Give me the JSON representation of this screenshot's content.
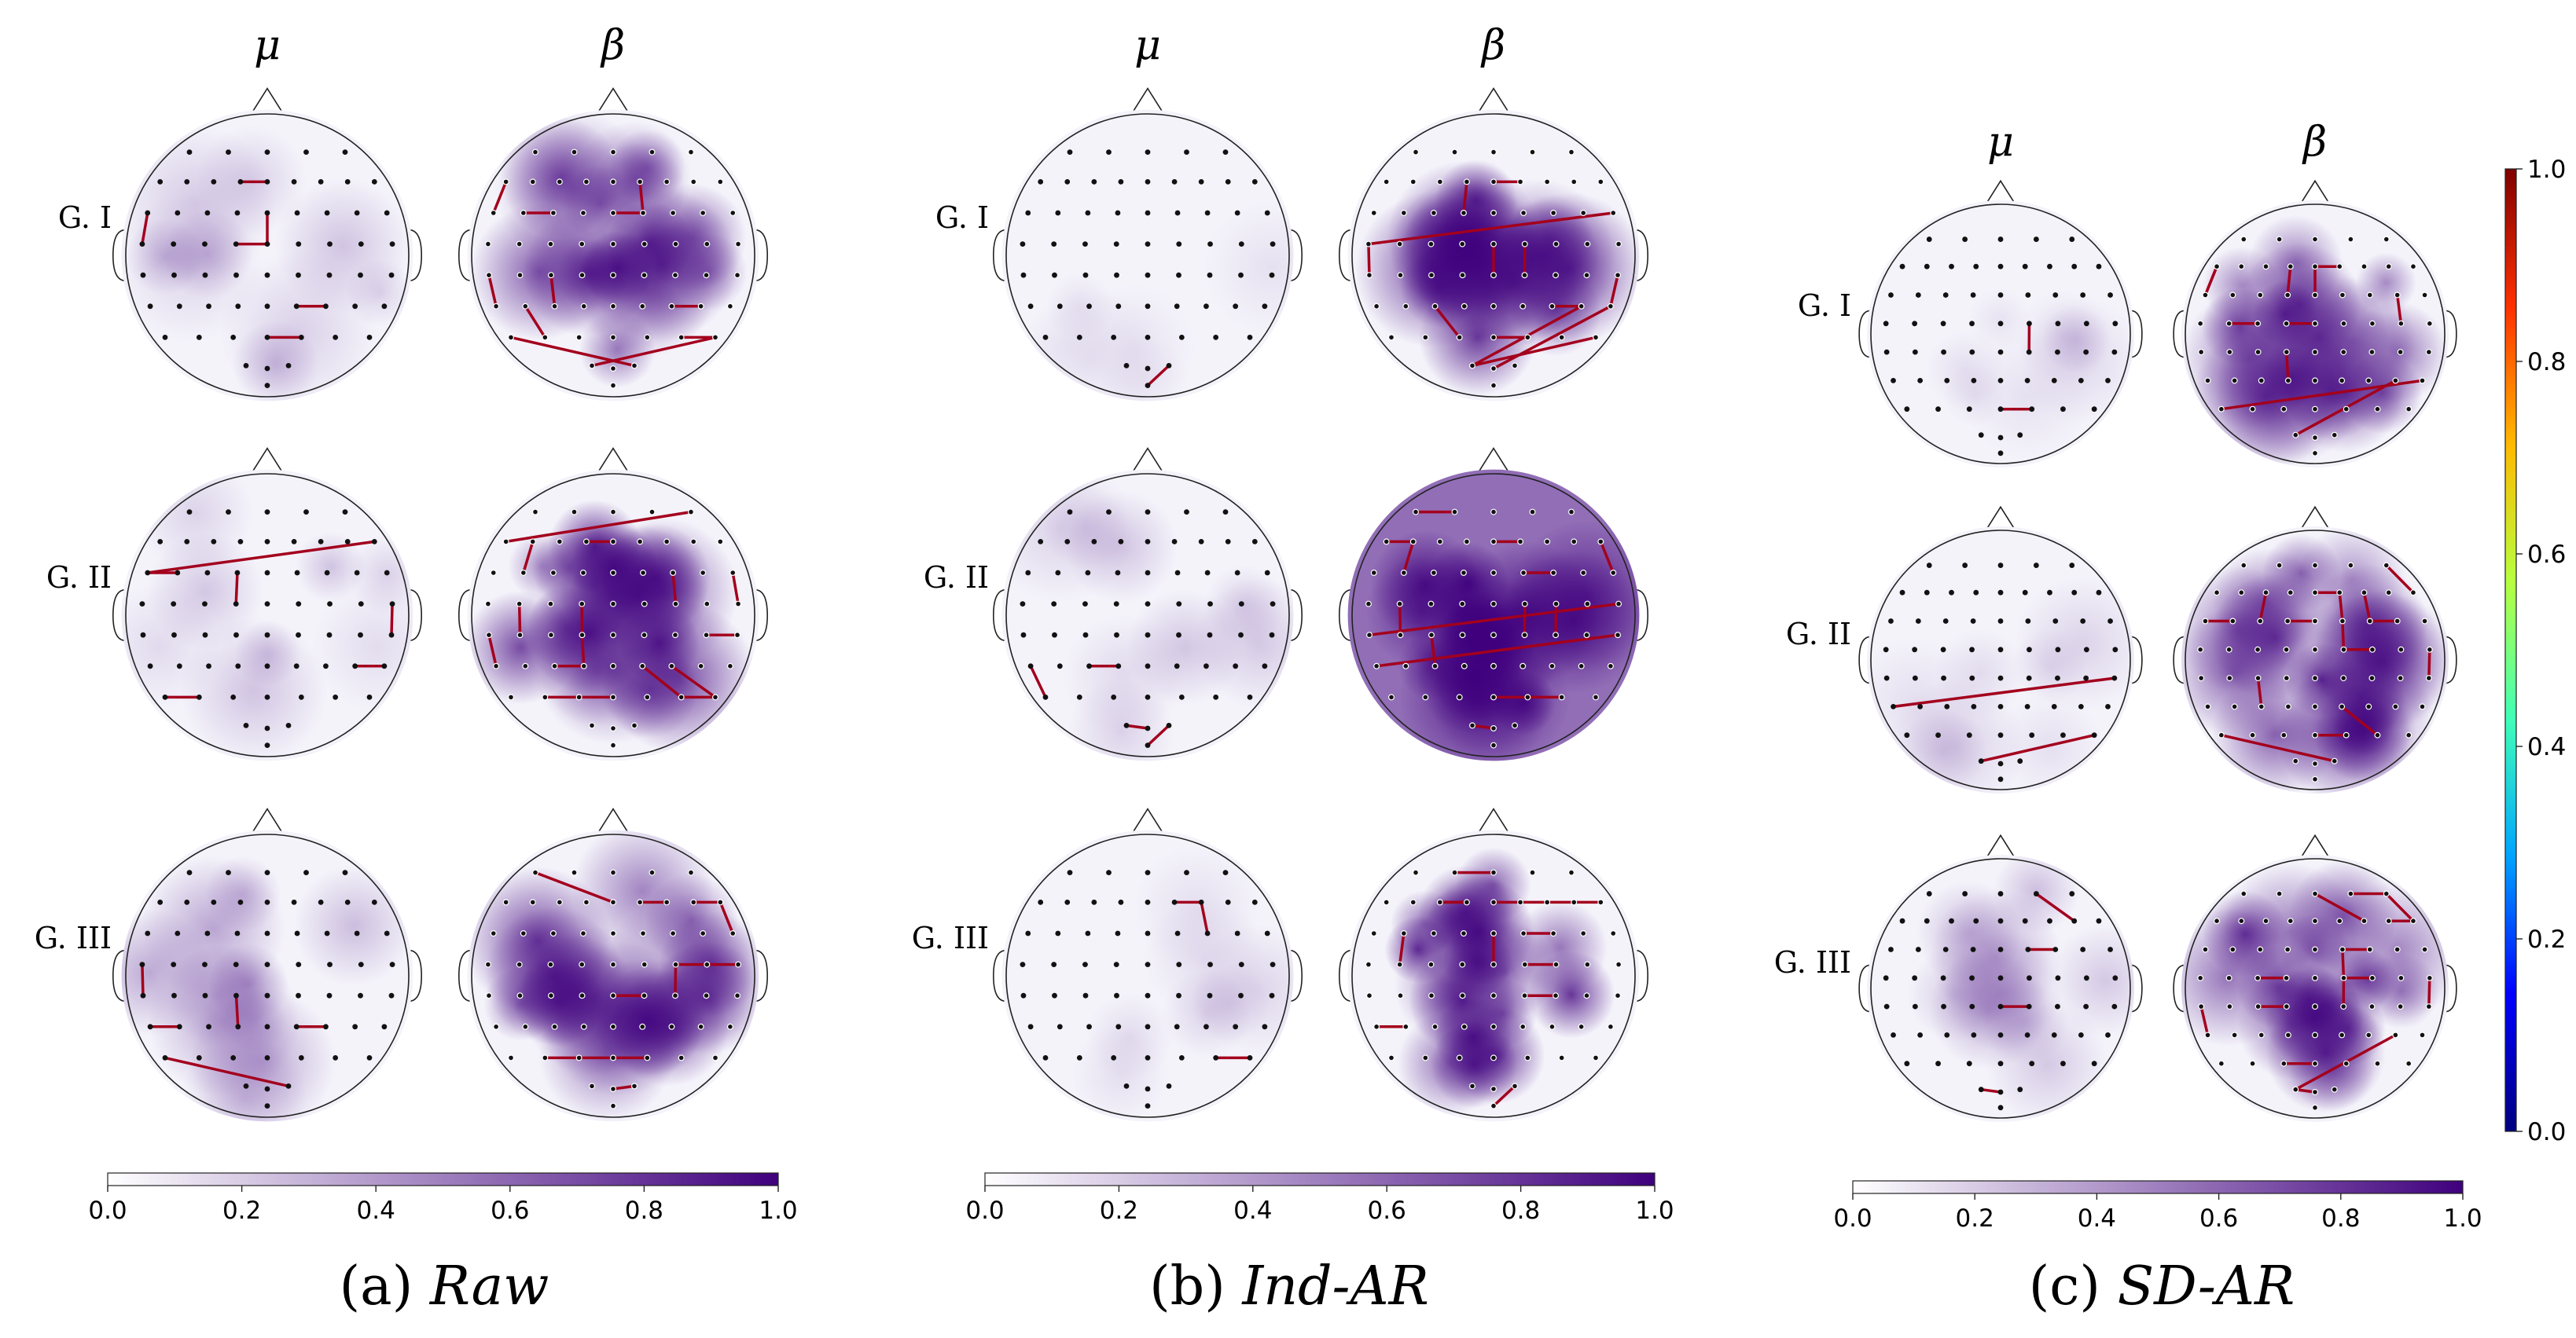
{
  "band_labels": {
    "mu": "μ",
    "beta": "β"
  },
  "group_labels": [
    "G. I",
    "G. II",
    "G. III"
  ],
  "panels": [
    {
      "tag": "(a)",
      "method": "Raw",
      "colorbar": {
        "min": "0.0",
        "ticks": [
          "0.0",
          "0.2",
          "0.4",
          "0.6",
          "0.8",
          "1.0"
        ],
        "max": "1.0"
      },
      "maps": [
        {
          "group": "G. I",
          "band": "μ",
          "intensity": 0.25,
          "connections": 6
        },
        {
          "group": "G. I",
          "band": "β",
          "intensity": 0.8,
          "connections": 12
        },
        {
          "group": "G. II",
          "band": "μ",
          "intensity": 0.2,
          "connections": 6
        },
        {
          "group": "G. II",
          "band": "β",
          "intensity": 0.85,
          "connections": 16
        },
        {
          "group": "G. III",
          "band": "μ",
          "intensity": 0.35,
          "connections": 5
        },
        {
          "group": "G. III",
          "band": "β",
          "intensity": 0.8,
          "connections": 12
        }
      ]
    },
    {
      "tag": "(b)",
      "method": "Ind-AR",
      "colorbar": {
        "ticks": [
          "0.0",
          "0.2",
          "0.4",
          "0.6",
          "0.8",
          "1.0"
        ]
      },
      "maps": [
        {
          "group": "G. I",
          "band": "μ",
          "intensity": 0.1,
          "connections": 1
        },
        {
          "group": "G. I",
          "band": "β",
          "intensity": 0.8,
          "connections": 13
        },
        {
          "group": "G. II",
          "band": "μ",
          "intensity": 0.2,
          "connections": 4
        },
        {
          "group": "G. II",
          "band": "β",
          "intensity": 1.0,
          "connections": 16
        },
        {
          "group": "G. III",
          "band": "μ",
          "intensity": 0.15,
          "connections": 3
        },
        {
          "group": "G. III",
          "band": "β",
          "intensity": 0.9,
          "connections": 14
        }
      ]
    },
    {
      "tag": "(c)",
      "method": "SD-AR",
      "colorbar": {
        "ticks": [
          "0.0",
          "0.2",
          "0.4",
          "0.6",
          "0.8",
          "1.0"
        ]
      },
      "maps": [
        {
          "group": "G. I",
          "band": "μ",
          "intensity": 0.15,
          "connections": 2
        },
        {
          "group": "G. I",
          "band": "β",
          "intensity": 0.75,
          "connections": 11
        },
        {
          "group": "G. II",
          "band": "μ",
          "intensity": 0.15,
          "connections": 2
        },
        {
          "group": "G. II",
          "band": "β",
          "intensity": 0.85,
          "connections": 15
        },
        {
          "group": "G. III",
          "band": "μ",
          "intensity": 0.3,
          "connections": 4
        },
        {
          "group": "G. III",
          "band": "β",
          "intensity": 0.85,
          "connections": 15
        }
      ]
    }
  ],
  "edge_colorbar": {
    "ticks": [
      "1.0",
      "0.8",
      "0.6",
      "0.4",
      "0.2",
      "0.0"
    ]
  },
  "colors": {
    "heat_low": "#ffffff",
    "heat_high": "#3f007d",
    "edge": "#a3001d",
    "electrode": "#111111",
    "jet": [
      "#00007f",
      "#0000ff",
      "#00a4ff",
      "#40ffb7",
      "#b7ff40",
      "#ffb900",
      "#ff3000",
      "#7f0000"
    ]
  }
}
